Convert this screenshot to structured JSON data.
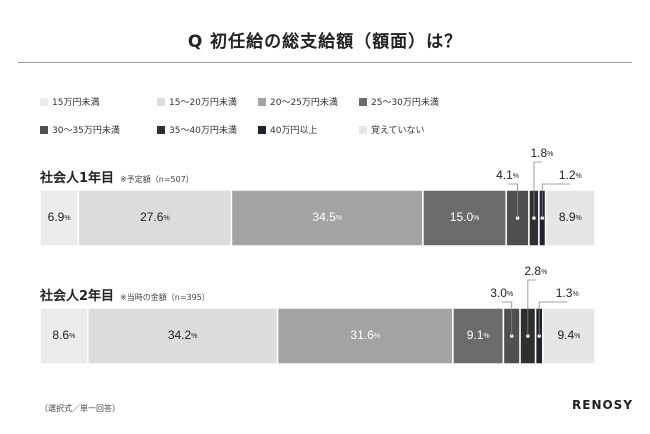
{
  "header": {
    "title": "Q 初任給の総支給額（額面）は？"
  },
  "footer": {
    "note": "（選択式／単一回答）",
    "brand": "RENOSY"
  },
  "chart_data": {
    "type": "bar",
    "orientation": "horizontal-stacked-100",
    "categories": [
      "社会人1年目",
      "社会人2年目"
    ],
    "category_notes": [
      "※予定額（n=507）",
      "※当時の金額（n=395）"
    ],
    "series": [
      {
        "name": "15万円未満",
        "values": [
          6.9,
          8.6
        ],
        "color": "#ececec",
        "text": "#222222"
      },
      {
        "name": "15〜20万円未満",
        "values": [
          27.6,
          34.2
        ],
        "color": "#dcdcdc",
        "text": "#222222"
      },
      {
        "name": "20〜25万円未満",
        "values": [
          34.5,
          31.6
        ],
        "color": "#a3a3a3",
        "text": "#ffffff"
      },
      {
        "name": "25〜30万円未満",
        "values": [
          15.0,
          9.1
        ],
        "color": "#6b6b6b",
        "text": "#ffffff"
      },
      {
        "name": "30〜35万円未満",
        "values": [
          4.1,
          3.0
        ],
        "color": "#4f4f4f",
        "text": "#ffffff"
      },
      {
        "name": "35〜40万円未満",
        "values": [
          1.8,
          2.8
        ],
        "color": "#2f2f2f",
        "text": "#ffffff"
      },
      {
        "name": "40万円以上",
        "values": [
          1.2,
          1.3
        ],
        "color": "#1d2430",
        "text": "#ffffff"
      },
      {
        "name": "覚えていない",
        "values": [
          8.9,
          9.4
        ],
        "color": "#e6e6e6",
        "text": "#222222"
      }
    ],
    "unit": "%"
  }
}
